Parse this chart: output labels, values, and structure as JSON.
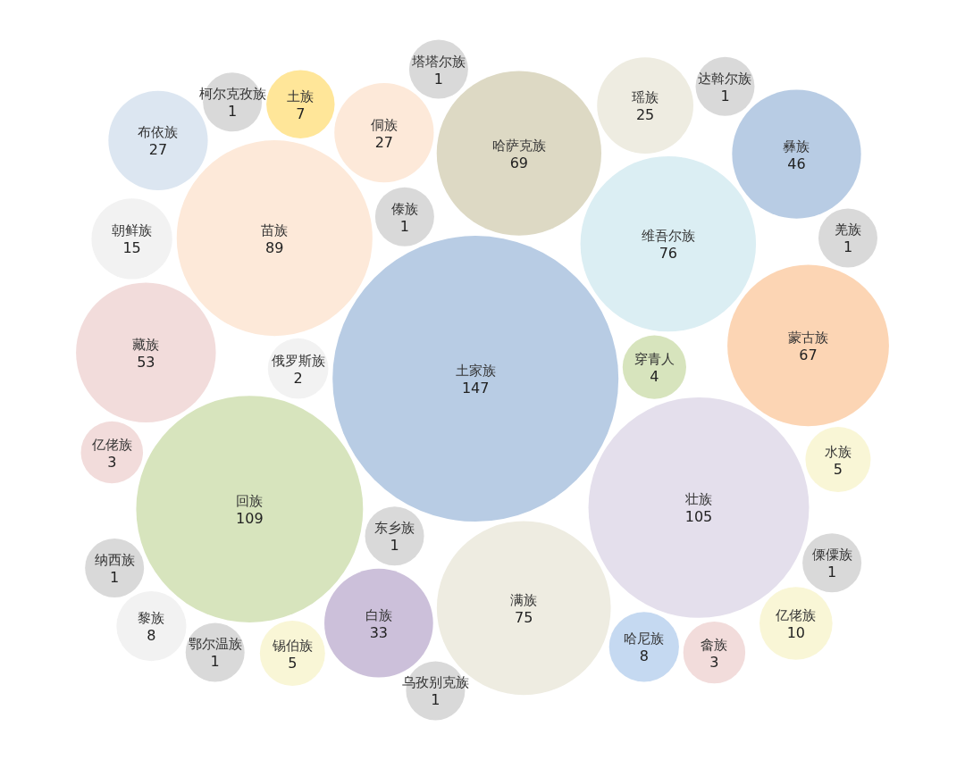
{
  "chart_data": {
    "type": "other",
    "categories": [
      "土家族",
      "回族",
      "壮族",
      "苗族",
      "维吾尔族",
      "满族",
      "哈萨克族",
      "蒙古族",
      "藏族",
      "彝族",
      "白族",
      "侗族",
      "布依族",
      "瑶族",
      "朝鲜族",
      "亿佬族",
      "哈尼族",
      "黎族",
      "土族",
      "锡伯族",
      "水族",
      "穿青人",
      "畲族",
      "亿佬族",
      "俄罗斯族",
      "东乡族",
      "傣族",
      "鄂尔温族",
      "柯尔克孜族",
      "傈僳族",
      "纳西族",
      "羌族",
      "塔塔尔族",
      "乌孜别克族",
      "达斡尔族"
    ],
    "values": [
      147,
      109,
      105,
      89,
      76,
      75,
      69,
      67,
      53,
      46,
      33,
      27,
      27,
      25,
      15,
      10,
      8,
      8,
      7,
      5,
      5,
      4,
      3,
      3,
      2,
      1,
      1,
      1,
      1,
      1,
      1,
      1,
      1,
      1,
      1
    ],
    "colors": [
      "#b8cce4",
      "#d7e4bd",
      "#e4dfec",
      "#fde9d9",
      "#dbeef3",
      "#eeece1",
      "#ddd9c4",
      "#fcd5b4",
      "#f2dcdb",
      "#b8cce4",
      "#ccc0da",
      "#fde9d9",
      "#dce6f1",
      "#eeece1",
      "#f2f2f2",
      "#f9f6d6",
      "#c5d9f1",
      "#f2f2f2",
      "#ffe699",
      "#f9f6d6",
      "#f9f6d6",
      "#d7e4bd",
      "#f2dcdb",
      "#f2dcdb",
      "#f2f2f2",
      "#d9d9d9",
      "#d9d9d9",
      "#d9d9d9",
      "#d9d9d9",
      "#d9d9d9",
      "#d9d9d9",
      "#d9d9d9",
      "#d9d9d9",
      "#d9d9d9",
      "#d9d9d9"
    ],
    "data_labels": true
  }
}
